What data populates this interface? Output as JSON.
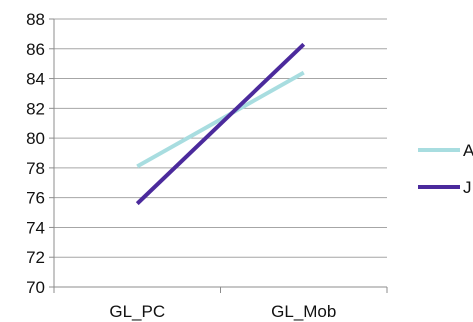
{
  "chart_data": {
    "type": "line",
    "title": "",
    "xlabel": "",
    "ylabel": "",
    "categories": [
      "GL_PC",
      "GL_Mob"
    ],
    "ylim": [
      70,
      88
    ],
    "y_ticks": [
      "70",
      "72",
      "74",
      "76",
      "78",
      "80",
      "82",
      "84",
      "86",
      "88"
    ],
    "grid": "horizontal",
    "legend_position": "right",
    "series": [
      {
        "name": "A",
        "values": [
          78.1,
          84.4
        ],
        "color": "#a8dde0"
      },
      {
        "name": "J",
        "values": [
          75.6,
          86.3
        ],
        "color": "#4b2a9c"
      }
    ]
  }
}
